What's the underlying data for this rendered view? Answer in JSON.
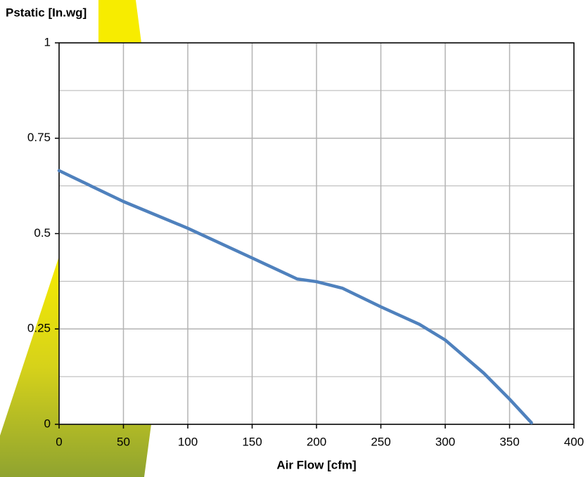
{
  "chart_data": {
    "type": "line",
    "y_axis_label": "Pstatic [In.wg]",
    "x_axis_label": "Air Flow [cfm]",
    "x": [
      0,
      50,
      100,
      150,
      185,
      200,
      220,
      250,
      280,
      300,
      330,
      350,
      367
    ],
    "values": [
      0.665,
      0.584,
      0.514,
      0.436,
      0.381,
      0.374,
      0.357,
      0.308,
      0.262,
      0.221,
      0.134,
      0.066,
      0.004
    ],
    "color": "#4f81bd",
    "xlim": [
      0,
      400
    ],
    "xticks": [
      0,
      50,
      100,
      150,
      200,
      250,
      300,
      350,
      400
    ],
    "ylim": [
      0,
      1
    ],
    "yticks": [
      0,
      0.25,
      0.5,
      0.75,
      1
    ],
    "y_minor_grid": [
      0.125,
      0.375,
      0.625,
      0.875
    ],
    "grid": true
  }
}
